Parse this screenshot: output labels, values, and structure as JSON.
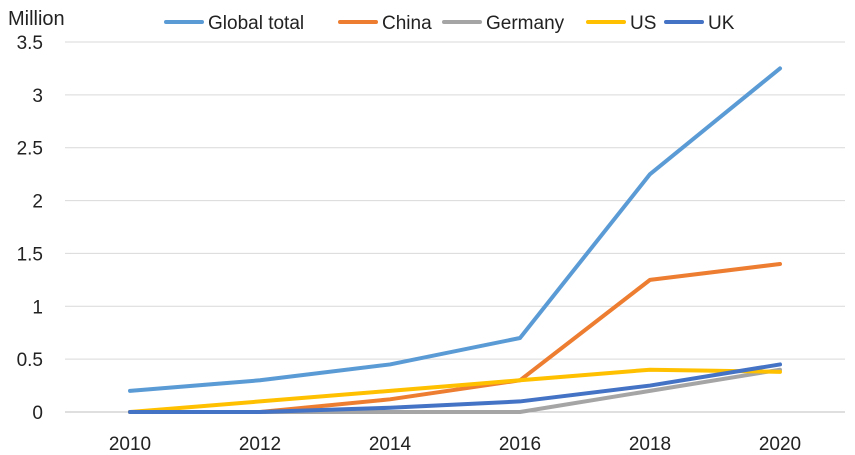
{
  "chart_data": {
    "type": "line",
    "title": "",
    "xlabel": "",
    "ylabel": "Million",
    "categories": [
      "2010",
      "2012",
      "2014",
      "2016",
      "2018",
      "2020"
    ],
    "ylim": [
      0,
      3.5
    ],
    "yticks": [
      0,
      0.5,
      1,
      1.5,
      2,
      2.5,
      3,
      3.5
    ],
    "ytick_labels": [
      "0",
      "0.5",
      "1",
      "1.5",
      "2",
      "2.5",
      "3",
      "3.5"
    ],
    "grid": true,
    "legend_position": "top",
    "series": [
      {
        "name": "Global total",
        "color": "#5B9BD5",
        "values": [
          0.2,
          0.3,
          0.45,
          0.7,
          2.25,
          3.25
        ]
      },
      {
        "name": "China",
        "color": "#ED7D31",
        "values": [
          0,
          0,
          0.12,
          0.3,
          1.25,
          1.4
        ]
      },
      {
        "name": "Germany",
        "color": "#A5A5A5",
        "values": [
          0,
          0,
          0,
          0,
          0.2,
          0.4
        ]
      },
      {
        "name": "US",
        "color": "#FFC000",
        "values": [
          0,
          0.1,
          0.2,
          0.3,
          0.4,
          0.38
        ]
      },
      {
        "name": "UK",
        "color": "#4472C4",
        "values": [
          0,
          0,
          0.04,
          0.1,
          0.25,
          0.45
        ]
      }
    ]
  }
}
